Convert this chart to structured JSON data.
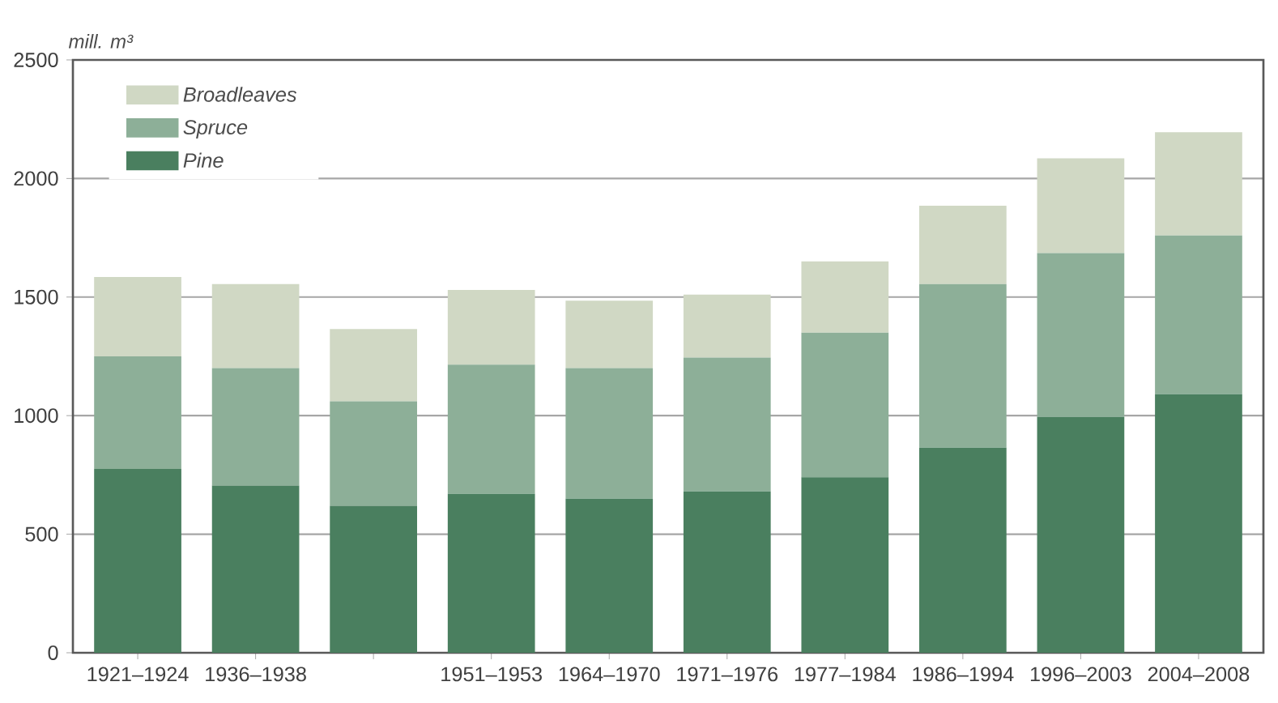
{
  "chart_data": {
    "type": "bar",
    "stacked": true,
    "ylabel": "mill. m³",
    "categories": [
      "1921–1924",
      "1936–1938",
      null,
      "1951–1953",
      "1964–1970",
      "1971–1976",
      "1977–1984",
      "1986–1994",
      "1996–2003",
      "2004–2008"
    ],
    "series": [
      {
        "name": "Pine",
        "color": "#4a7f5f",
        "values": [
          775,
          705,
          620,
          670,
          650,
          680,
          740,
          865,
          995,
          1090
        ]
      },
      {
        "name": "Spruce",
        "color": "#8daf98",
        "values": [
          475,
          495,
          440,
          545,
          550,
          565,
          610,
          690,
          690,
          670
        ]
      },
      {
        "name": "Broadleaves",
        "color": "#d0d8c4",
        "values": [
          335,
          355,
          305,
          315,
          285,
          265,
          300,
          330,
          400,
          435
        ]
      }
    ],
    "ylim": [
      0,
      2500
    ],
    "yticks": [
      0,
      500,
      1000,
      1500,
      2000,
      2500
    ],
    "grid": "y",
    "legend": "top left"
  }
}
